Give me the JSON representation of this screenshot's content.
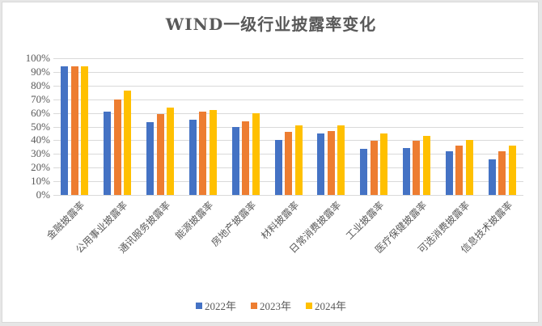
{
  "chart_data": {
    "type": "bar",
    "title": "WIND一级行业披露率变化",
    "xlabel": "",
    "ylabel": "",
    "ylim": [
      0,
      1
    ],
    "yticks": [
      "0%",
      "10%",
      "20%",
      "30%",
      "40%",
      "50%",
      "60%",
      "70%",
      "80%",
      "90%",
      "100%"
    ],
    "grid": true,
    "legend_position": "bottom",
    "categories": [
      "金融披露率",
      "公用事业披露率",
      "通讯服务披露率",
      "能源披露率",
      "房地产披露率",
      "材料披露率",
      "日常消费披露率",
      "工业披露率",
      "医疗保健披露率",
      "可选消费披露率",
      "信息技术披露率"
    ],
    "series": [
      {
        "name": "2022年",
        "color": "#4472c4",
        "values": [
          0.94,
          0.61,
          0.53,
          0.55,
          0.5,
          0.4,
          0.45,
          0.34,
          0.345,
          0.32,
          0.26
        ]
      },
      {
        "name": "2023年",
        "color": "#ed7d31",
        "values": [
          0.94,
          0.7,
          0.59,
          0.61,
          0.54,
          0.46,
          0.47,
          0.395,
          0.395,
          0.36,
          0.32
        ]
      },
      {
        "name": "2024年",
        "color": "#ffc000",
        "values": [
          0.94,
          0.765,
          0.64,
          0.62,
          0.6,
          0.51,
          0.51,
          0.45,
          0.43,
          0.4,
          0.36
        ]
      }
    ]
  }
}
